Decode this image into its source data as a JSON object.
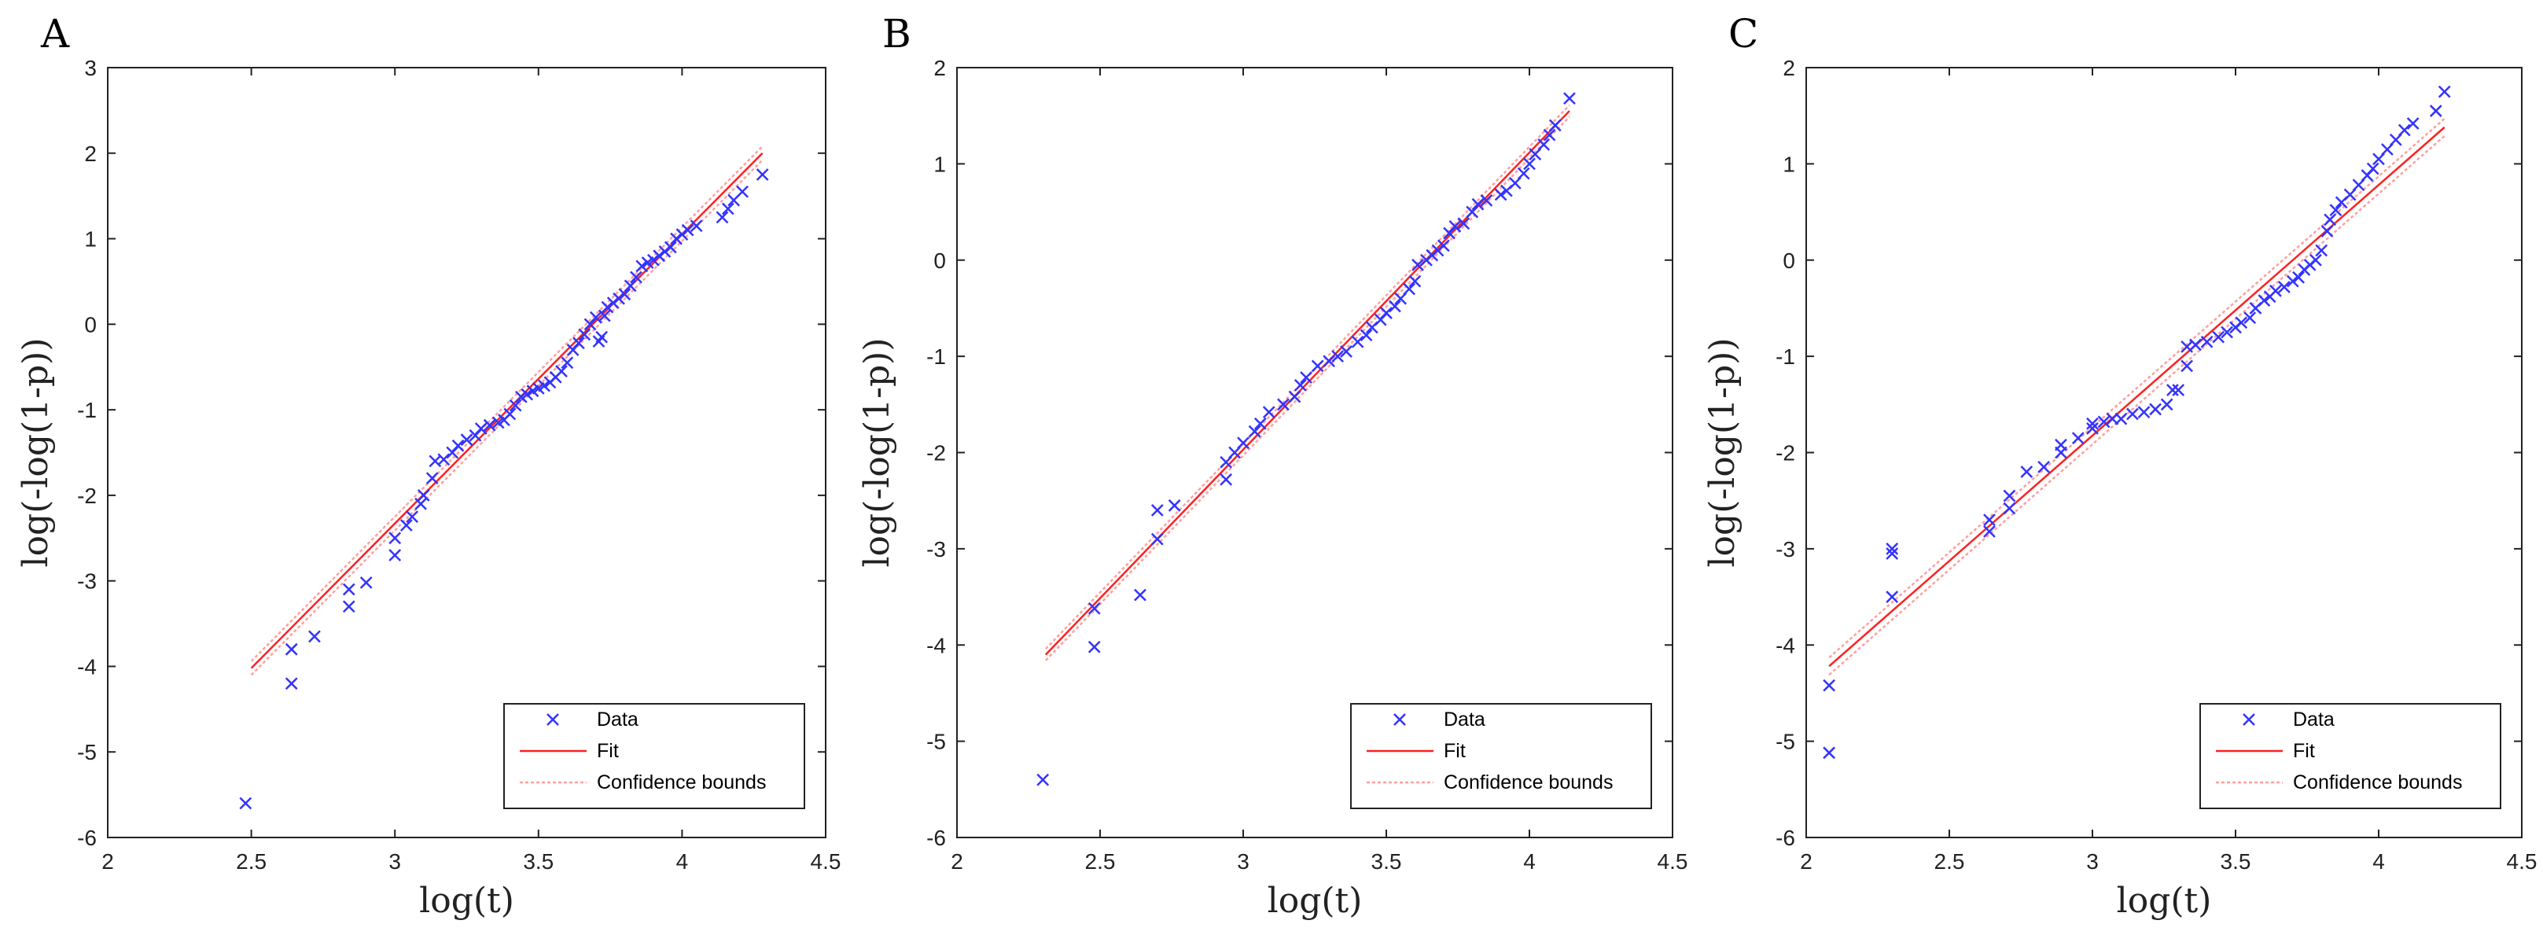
{
  "chart_data": [
    {
      "panel": "A",
      "type": "scatter",
      "xlabel": "log(t)",
      "ylabel": "log(-log(1-p))",
      "xlim": [
        2,
        4.5
      ],
      "ylim": [
        -6,
        3
      ],
      "xticks": [
        "2",
        "2.5",
        "3",
        "3.5",
        "4",
        "4.5"
      ],
      "yticks": [
        "3",
        "2",
        "1",
        "0",
        "-1",
        "-2",
        "-3",
        "-4",
        "-5",
        "-6"
      ],
      "legend": {
        "position": "bottom-right",
        "entries": [
          "Data",
          "Fit",
          "Confidence bounds"
        ]
      },
      "fit": {
        "x": [
          2.5,
          4.28
        ],
        "y": [
          -4.02,
          2.0
        ],
        "band": 0.08
      },
      "series": [
        {
          "name": "Data",
          "points": [
            [
              2.48,
              -5.6
            ],
            [
              2.64,
              -4.2
            ],
            [
              2.64,
              -3.8
            ],
            [
              2.72,
              -3.65
            ],
            [
              2.84,
              -3.3
            ],
            [
              2.84,
              -3.1
            ],
            [
              2.9,
              -3.02
            ],
            [
              3.0,
              -2.7
            ],
            [
              3.0,
              -2.5
            ],
            [
              3.04,
              -2.35
            ],
            [
              3.06,
              -2.25
            ],
            [
              3.09,
              -2.1
            ],
            [
              3.1,
              -2.0
            ],
            [
              3.13,
              -1.8
            ],
            [
              3.14,
              -1.6
            ],
            [
              3.17,
              -1.58
            ],
            [
              3.2,
              -1.5
            ],
            [
              3.22,
              -1.42
            ],
            [
              3.25,
              -1.35
            ],
            [
              3.28,
              -1.3
            ],
            [
              3.3,
              -1.22
            ],
            [
              3.33,
              -1.18
            ],
            [
              3.36,
              -1.15
            ],
            [
              3.38,
              -1.12
            ],
            [
              3.4,
              -1.05
            ],
            [
              3.42,
              -0.95
            ],
            [
              3.44,
              -0.85
            ],
            [
              3.46,
              -0.82
            ],
            [
              3.48,
              -0.78
            ],
            [
              3.5,
              -0.75
            ],
            [
              3.52,
              -0.72
            ],
            [
              3.54,
              -0.68
            ],
            [
              3.56,
              -0.62
            ],
            [
              3.58,
              -0.55
            ],
            [
              3.6,
              -0.45
            ],
            [
              3.62,
              -0.3
            ],
            [
              3.64,
              -0.22
            ],
            [
              3.66,
              -0.12
            ],
            [
              3.68,
              0.0
            ],
            [
              3.7,
              0.08
            ],
            [
              3.71,
              -0.2
            ],
            [
              3.72,
              -0.15
            ],
            [
              3.73,
              0.1
            ],
            [
              3.74,
              0.2
            ],
            [
              3.76,
              0.25
            ],
            [
              3.78,
              0.3
            ],
            [
              3.8,
              0.35
            ],
            [
              3.82,
              0.45
            ],
            [
              3.84,
              0.55
            ],
            [
              3.86,
              0.68
            ],
            [
              3.88,
              0.72
            ],
            [
              3.9,
              0.75
            ],
            [
              3.92,
              0.8
            ],
            [
              3.94,
              0.85
            ],
            [
              3.96,
              0.9
            ],
            [
              3.98,
              1.0
            ],
            [
              4.0,
              1.05
            ],
            [
              4.02,
              1.1
            ],
            [
              4.05,
              1.15
            ],
            [
              4.14,
              1.25
            ],
            [
              4.16,
              1.35
            ],
            [
              4.18,
              1.45
            ],
            [
              4.21,
              1.55
            ],
            [
              4.28,
              1.75
            ]
          ]
        },
        {
          "name": "Fit"
        },
        {
          "name": "Confidence bounds"
        }
      ]
    },
    {
      "panel": "B",
      "type": "scatter",
      "xlabel": "log(t)",
      "ylabel": "log(-log(1-p))",
      "xlim": [
        2,
        4.5
      ],
      "ylim": [
        -6,
        2
      ],
      "xticks": [
        "2",
        "2.5",
        "3",
        "3.5",
        "4",
        "4.5"
      ],
      "yticks": [
        "2",
        "1",
        "0",
        "-1",
        "-2",
        "-3",
        "-4",
        "-5",
        "-6"
      ],
      "legend": {
        "position": "bottom-right",
        "entries": [
          "Data",
          "Fit",
          "Confidence bounds"
        ]
      },
      "fit": {
        "x": [
          2.31,
          4.14
        ],
        "y": [
          -4.1,
          1.55
        ],
        "band": 0.06
      },
      "series": [
        {
          "name": "Data",
          "points": [
            [
              2.3,
              -5.4
            ],
            [
              2.48,
              -4.02
            ],
            [
              2.48,
              -3.62
            ],
            [
              2.64,
              -3.48
            ],
            [
              2.7,
              -2.9
            ],
            [
              2.7,
              -2.6
            ],
            [
              2.76,
              -2.55
            ],
            [
              2.94,
              -2.28
            ],
            [
              2.94,
              -2.1
            ],
            [
              2.97,
              -2.0
            ],
            [
              3.0,
              -1.9
            ],
            [
              3.04,
              -1.78
            ],
            [
              3.06,
              -1.7
            ],
            [
              3.09,
              -1.58
            ],
            [
              3.14,
              -1.5
            ],
            [
              3.18,
              -1.42
            ],
            [
              3.2,
              -1.3
            ],
            [
              3.22,
              -1.22
            ],
            [
              3.26,
              -1.1
            ],
            [
              3.3,
              -1.05
            ],
            [
              3.33,
              -1.0
            ],
            [
              3.36,
              -0.95
            ],
            [
              3.4,
              -0.85
            ],
            [
              3.43,
              -0.78
            ],
            [
              3.45,
              -0.7
            ],
            [
              3.48,
              -0.62
            ],
            [
              3.5,
              -0.55
            ],
            [
              3.53,
              -0.48
            ],
            [
              3.55,
              -0.4
            ],
            [
              3.58,
              -0.3
            ],
            [
              3.6,
              -0.22
            ],
            [
              3.61,
              -0.05
            ],
            [
              3.64,
              0.0
            ],
            [
              3.66,
              0.05
            ],
            [
              3.68,
              0.1
            ],
            [
              3.7,
              0.15
            ],
            [
              3.72,
              0.28
            ],
            [
              3.74,
              0.35
            ],
            [
              3.77,
              0.38
            ],
            [
              3.8,
              0.5
            ],
            [
              3.82,
              0.58
            ],
            [
              3.85,
              0.62
            ],
            [
              3.9,
              0.68
            ],
            [
              3.92,
              0.72
            ],
            [
              3.95,
              0.8
            ],
            [
              3.98,
              0.9
            ],
            [
              4.0,
              1.0
            ],
            [
              4.02,
              1.1
            ],
            [
              4.05,
              1.2
            ],
            [
              4.07,
              1.3
            ],
            [
              4.09,
              1.4
            ],
            [
              4.14,
              1.68
            ]
          ]
        },
        {
          "name": "Fit"
        },
        {
          "name": "Confidence bounds"
        }
      ]
    },
    {
      "panel": "C",
      "type": "scatter",
      "xlabel": "log(t)",
      "ylabel": "log(-log(1-p))",
      "xlim": [
        2,
        4.5
      ],
      "ylim": [
        -6,
        2
      ],
      "xticks": [
        "2",
        "2.5",
        "3",
        "3.5",
        "4",
        "4.5"
      ],
      "yticks": [
        "2",
        "1",
        "0",
        "-1",
        "-2",
        "-3",
        "-4",
        "-5",
        "-6"
      ],
      "legend": {
        "position": "bottom-right",
        "entries": [
          "Data",
          "Fit",
          "Confidence bounds"
        ]
      },
      "fit": {
        "x": [
          2.08,
          4.23
        ],
        "y": [
          -4.22,
          1.38
        ],
        "band": 0.09
      },
      "series": [
        {
          "name": "Data",
          "points": [
            [
              2.08,
              -5.12
            ],
            [
              2.08,
              -4.42
            ],
            [
              2.3,
              -3.5
            ],
            [
              2.3,
              -3.05
            ],
            [
              2.3,
              -3.0
            ],
            [
              2.64,
              -2.82
            ],
            [
              2.64,
              -2.7
            ],
            [
              2.71,
              -2.58
            ],
            [
              2.71,
              -2.45
            ],
            [
              2.77,
              -2.2
            ],
            [
              2.83,
              -2.15
            ],
            [
              2.89,
              -2.0
            ],
            [
              2.89,
              -1.92
            ],
            [
              2.95,
              -1.85
            ],
            [
              3.0,
              -1.75
            ],
            [
              3.0,
              -1.7
            ],
            [
              3.04,
              -1.68
            ],
            [
              3.07,
              -1.65
            ],
            [
              3.1,
              -1.65
            ],
            [
              3.14,
              -1.6
            ],
            [
              3.18,
              -1.58
            ],
            [
              3.22,
              -1.55
            ],
            [
              3.26,
              -1.5
            ],
            [
              3.28,
              -1.35
            ],
            [
              3.3,
              -1.35
            ],
            [
              3.33,
              -1.1
            ],
            [
              3.33,
              -0.9
            ],
            [
              3.36,
              -0.88
            ],
            [
              3.4,
              -0.85
            ],
            [
              3.44,
              -0.8
            ],
            [
              3.47,
              -0.75
            ],
            [
              3.5,
              -0.7
            ],
            [
              3.52,
              -0.65
            ],
            [
              3.55,
              -0.6
            ],
            [
              3.57,
              -0.5
            ],
            [
              3.6,
              -0.42
            ],
            [
              3.62,
              -0.38
            ],
            [
              3.64,
              -0.32
            ],
            [
              3.67,
              -0.28
            ],
            [
              3.7,
              -0.22
            ],
            [
              3.72,
              -0.18
            ],
            [
              3.74,
              -0.1
            ],
            [
              3.76,
              -0.05
            ],
            [
              3.78,
              0.0
            ],
            [
              3.8,
              0.1
            ],
            [
              3.82,
              0.3
            ],
            [
              3.83,
              0.42
            ],
            [
              3.85,
              0.52
            ],
            [
              3.87,
              0.6
            ],
            [
              3.9,
              0.68
            ],
            [
              3.93,
              0.78
            ],
            [
              3.96,
              0.88
            ],
            [
              3.98,
              0.95
            ],
            [
              4.0,
              1.05
            ],
            [
              4.03,
              1.15
            ],
            [
              4.06,
              1.25
            ],
            [
              4.09,
              1.35
            ],
            [
              4.12,
              1.42
            ],
            [
              4.2,
              1.55
            ],
            [
              4.23,
              1.75
            ]
          ]
        },
        {
          "name": "Fit"
        },
        {
          "name": "Confidence bounds"
        }
      ]
    }
  ],
  "colors": {
    "data": "#3333ff",
    "fit": "#ff2020",
    "bounds": "#ff9f9f",
    "axes": "#222222",
    "background": "#ffffff"
  }
}
